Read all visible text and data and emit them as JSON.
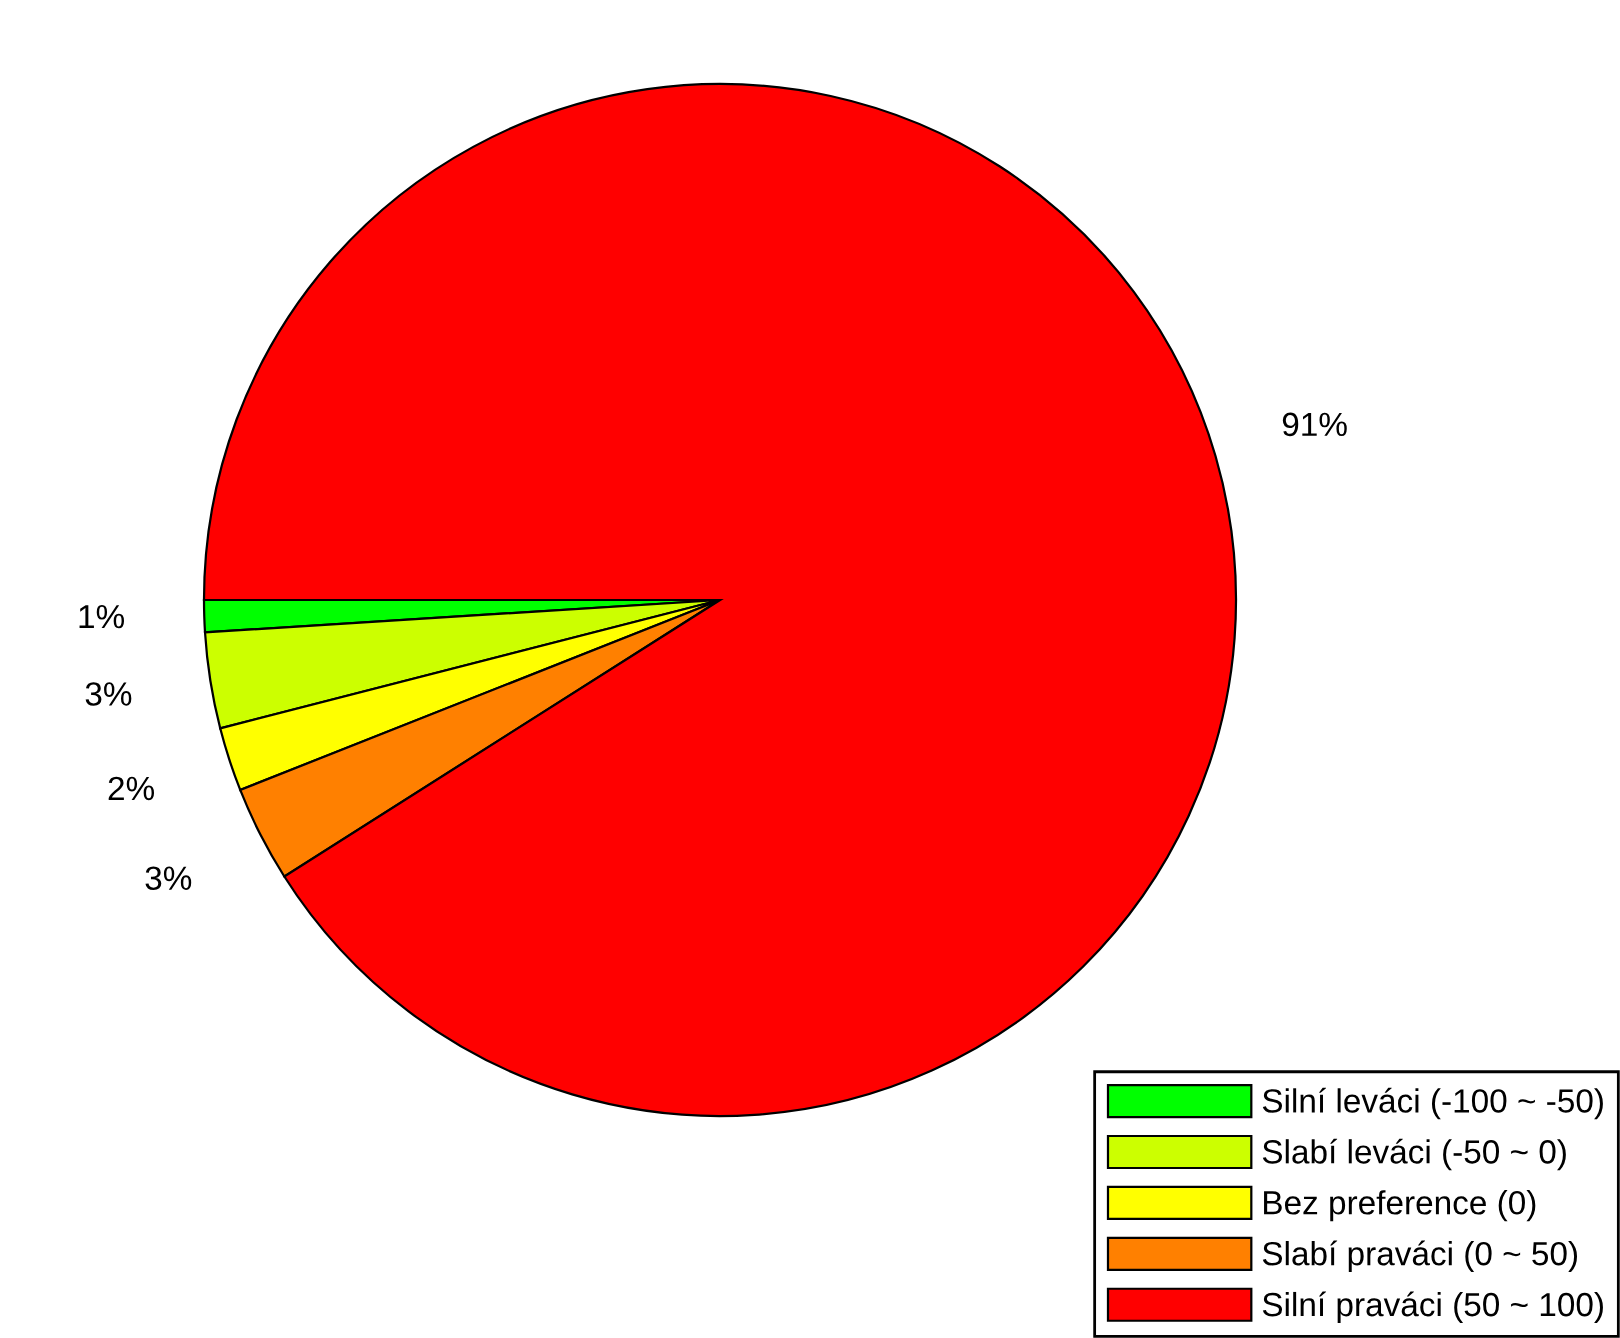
{
  "chart_data": {
    "type": "pie",
    "categories": [
      "Silní leváci (-100 ~ -50)",
      "Slabí leváci (-50 ~ 0)",
      "Bez preference (0)",
      "Slabí praváci (0 ~ 50)",
      "Silní praváci (50 ~ 100)"
    ],
    "values": [
      1,
      3,
      2,
      3,
      91
    ],
    "colors": [
      "#00ff00",
      "#ccff00",
      "#ffff00",
      "#ff8000",
      "#ff0000"
    ],
    "value_labels": [
      "1%",
      "3%",
      "2%",
      "3%",
      "91%"
    ],
    "legend": "bottom right"
  }
}
